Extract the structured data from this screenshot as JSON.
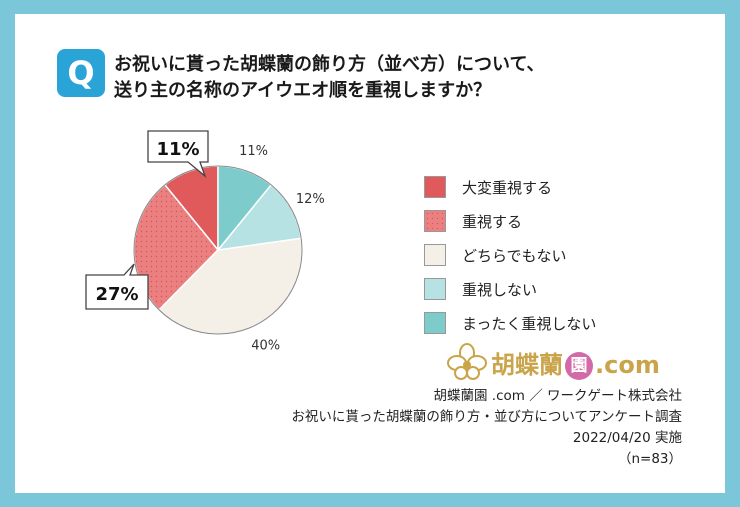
{
  "question": {
    "badge": "Q",
    "line1": "お祝いに貰った胡蝶蘭の飾り方（並べ方）について、",
    "line2": "送り主の名称のアイウエオ順を重視しますか？"
  },
  "chart_data": {
    "type": "pie",
    "categories": [
      "大変重視する",
      "重視する",
      "どちらでもない",
      "重視しない",
      "まったく重視しない"
    ],
    "values": [
      11,
      27,
      40,
      12,
      11
    ],
    "value_labels": [
      "11%",
      "27%",
      "40%",
      "12%",
      "11%"
    ],
    "colors": [
      "#e05a5c",
      "#ec8080",
      "#f4f0e8",
      "#b6e2e4",
      "#7dcccb"
    ],
    "legend_position": "right"
  },
  "brand": {
    "name_pre": "胡蝶蘭",
    "name_circle": "園",
    "name_post": ".com"
  },
  "footer": {
    "line1": "胡蝶蘭園 .com ／ ワークゲート株式会社",
    "line2": "お祝いに貰った胡蝶蘭の飾り方・並び方についてアンケート調査",
    "line3": "2022/04/20 実施",
    "line4": "（n=83）"
  }
}
